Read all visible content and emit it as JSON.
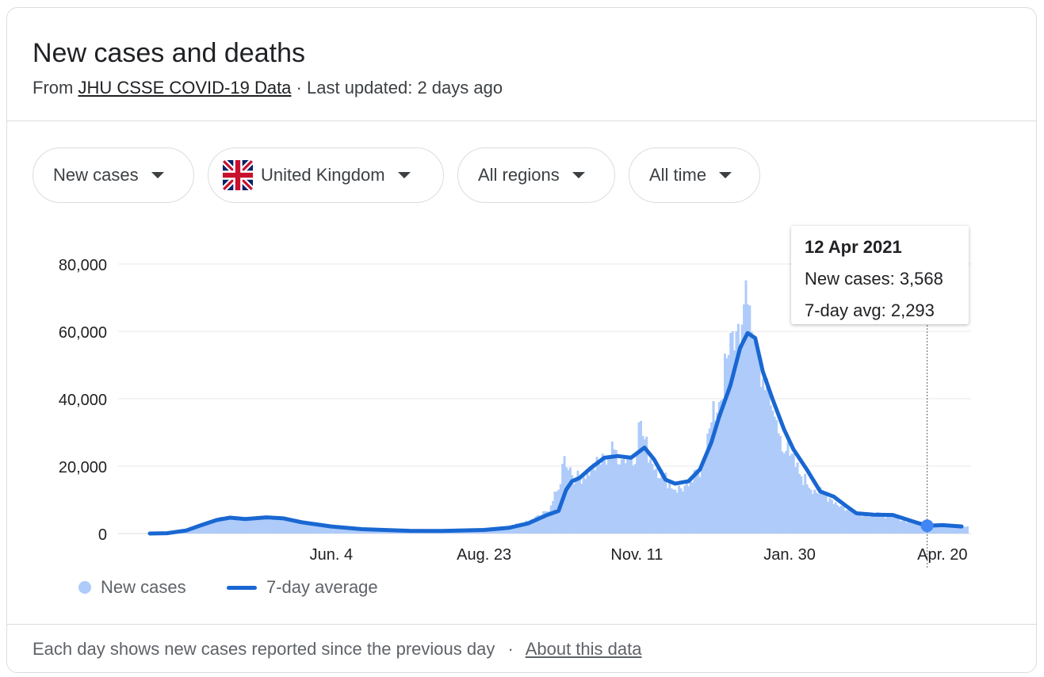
{
  "header": {
    "title": "New cases and deaths",
    "from_prefix": "From",
    "source_link": "JHU CSSE COVID-19 Data",
    "separator": "·",
    "updated": "Last updated: 2 days ago"
  },
  "filters": {
    "metric": "New cases",
    "country": "United Kingdom",
    "region": "All regions",
    "time": "All time"
  },
  "tooltip": {
    "date": "12 Apr 2021",
    "new_cases_text": "New cases: 3,568",
    "avg_text": "7-day avg: 2,293"
  },
  "legend": {
    "bars_label": "New cases",
    "line_label": "7-day average"
  },
  "footer": {
    "note": "Each day shows new cases reported since the previous day",
    "separator": "·",
    "about_link": "About this data"
  },
  "colors": {
    "bars": "#aecbfa",
    "line": "#1967d2",
    "grid": "#e8eaed",
    "marker": "#4285f4"
  },
  "chart_data": {
    "type": "bar",
    "x_ticks": [
      "Jun. 4",
      "Aug. 23",
      "Nov. 11",
      "Jan. 30",
      "Apr. 20"
    ],
    "y_ticks": [
      "0",
      "20,000",
      "40,000",
      "60,000",
      "80,000"
    ],
    "ylim": [
      0,
      80000
    ],
    "series": [
      {
        "name": "New cases",
        "type": "bar",
        "points": [
          [
            "2020-03-01",
            100
          ],
          [
            "2020-03-15",
            700
          ],
          [
            "2020-03-28",
            2600
          ],
          [
            "2020-04-05",
            4200
          ],
          [
            "2020-04-12",
            4600
          ],
          [
            "2020-04-20",
            4300
          ],
          [
            "2020-05-01",
            4800
          ],
          [
            "2020-05-10",
            4400
          ],
          [
            "2020-05-20",
            3000
          ],
          [
            "2020-06-04",
            2000
          ],
          [
            "2020-06-20",
            1200
          ],
          [
            "2020-07-15",
            700
          ],
          [
            "2020-08-01",
            800
          ],
          [
            "2020-08-23",
            1100
          ],
          [
            "2020-09-05",
            2000
          ],
          [
            "2020-09-15",
            3500
          ],
          [
            "2020-09-25",
            6500
          ],
          [
            "2020-10-01",
            13000
          ],
          [
            "2020-10-04",
            23000
          ],
          [
            "2020-10-10",
            16000
          ],
          [
            "2020-10-18",
            19000
          ],
          [
            "2020-10-25",
            22000
          ],
          [
            "2020-10-30",
            25000
          ],
          [
            "2020-11-03",
            22000
          ],
          [
            "2020-11-11",
            24000
          ],
          [
            "2020-11-12",
            33000
          ],
          [
            "2020-11-18",
            22000
          ],
          [
            "2020-11-25",
            17000
          ],
          [
            "2020-12-01",
            13000
          ],
          [
            "2020-12-08",
            14000
          ],
          [
            "2020-12-15",
            20000
          ],
          [
            "2020-12-20",
            33000
          ],
          [
            "2020-12-24",
            39000
          ],
          [
            "2020-12-29",
            53000
          ],
          [
            "2021-01-02",
            60000
          ],
          [
            "2021-01-05",
            62000
          ],
          [
            "2021-01-08",
            68000
          ],
          [
            "2021-01-12",
            58000
          ],
          [
            "2021-01-16",
            46000
          ],
          [
            "2021-01-20",
            38000
          ],
          [
            "2021-01-25",
            29000
          ],
          [
            "2021-01-30",
            23000
          ],
          [
            "2021-02-05",
            17000
          ],
          [
            "2021-02-12",
            13000
          ],
          [
            "2021-02-20",
            10500
          ],
          [
            "2021-03-01",
            7000
          ],
          [
            "2021-03-10",
            5800
          ],
          [
            "2021-03-20",
            5500
          ],
          [
            "2021-03-28",
            4500
          ],
          [
            "2021-04-05",
            3000
          ],
          [
            "2021-04-12",
            3568
          ],
          [
            "2021-04-20",
            2500
          ],
          [
            "2021-04-30",
            2200
          ]
        ]
      },
      {
        "name": "7-day average",
        "type": "line",
        "points": [
          [
            "2020-03-01",
            0
          ],
          [
            "2020-03-10",
            100
          ],
          [
            "2020-03-20",
            900
          ],
          [
            "2020-03-28",
            2500
          ],
          [
            "2020-04-05",
            4000
          ],
          [
            "2020-04-12",
            4700
          ],
          [
            "2020-04-20",
            4300
          ],
          [
            "2020-05-01",
            4800
          ],
          [
            "2020-05-10",
            4500
          ],
          [
            "2020-05-20",
            3300
          ],
          [
            "2020-06-04",
            2100
          ],
          [
            "2020-06-20",
            1300
          ],
          [
            "2020-07-15",
            800
          ],
          [
            "2020-08-01",
            750
          ],
          [
            "2020-08-23",
            1050
          ],
          [
            "2020-09-05",
            1700
          ],
          [
            "2020-09-15",
            3000
          ],
          [
            "2020-09-25",
            5500
          ],
          [
            "2020-10-01",
            6700
          ],
          [
            "2020-10-05",
            13000
          ],
          [
            "2020-10-08",
            15500
          ],
          [
            "2020-10-12",
            16500
          ],
          [
            "2020-10-18",
            19500
          ],
          [
            "2020-10-25",
            22500
          ],
          [
            "2020-11-01",
            23000
          ],
          [
            "2020-11-08",
            22500
          ],
          [
            "2020-11-15",
            25500
          ],
          [
            "2020-11-20",
            22000
          ],
          [
            "2020-11-26",
            16000
          ],
          [
            "2020-12-01",
            14800
          ],
          [
            "2020-12-08",
            15500
          ],
          [
            "2020-12-14",
            19000
          ],
          [
            "2020-12-20",
            27000
          ],
          [
            "2020-12-24",
            34500
          ],
          [
            "2020-12-30",
            44000
          ],
          [
            "2021-01-04",
            55000
          ],
          [
            "2021-01-08",
            59500
          ],
          [
            "2021-01-12",
            58000
          ],
          [
            "2021-01-16",
            48000
          ],
          [
            "2021-01-21",
            40000
          ],
          [
            "2021-01-27",
            31000
          ],
          [
            "2021-02-01",
            25000
          ],
          [
            "2021-02-08",
            19000
          ],
          [
            "2021-02-15",
            12500
          ],
          [
            "2021-02-22",
            11000
          ],
          [
            "2021-03-01",
            8000
          ],
          [
            "2021-03-06",
            6000
          ],
          [
            "2021-03-15",
            5600
          ],
          [
            "2021-03-25",
            5500
          ],
          [
            "2021-04-05",
            3500
          ],
          [
            "2021-04-12",
            2293
          ],
          [
            "2021-04-20",
            2500
          ],
          [
            "2021-04-30",
            2100
          ]
        ]
      }
    ],
    "highlight": {
      "date": "2021-04-12",
      "avg": 2293
    }
  }
}
